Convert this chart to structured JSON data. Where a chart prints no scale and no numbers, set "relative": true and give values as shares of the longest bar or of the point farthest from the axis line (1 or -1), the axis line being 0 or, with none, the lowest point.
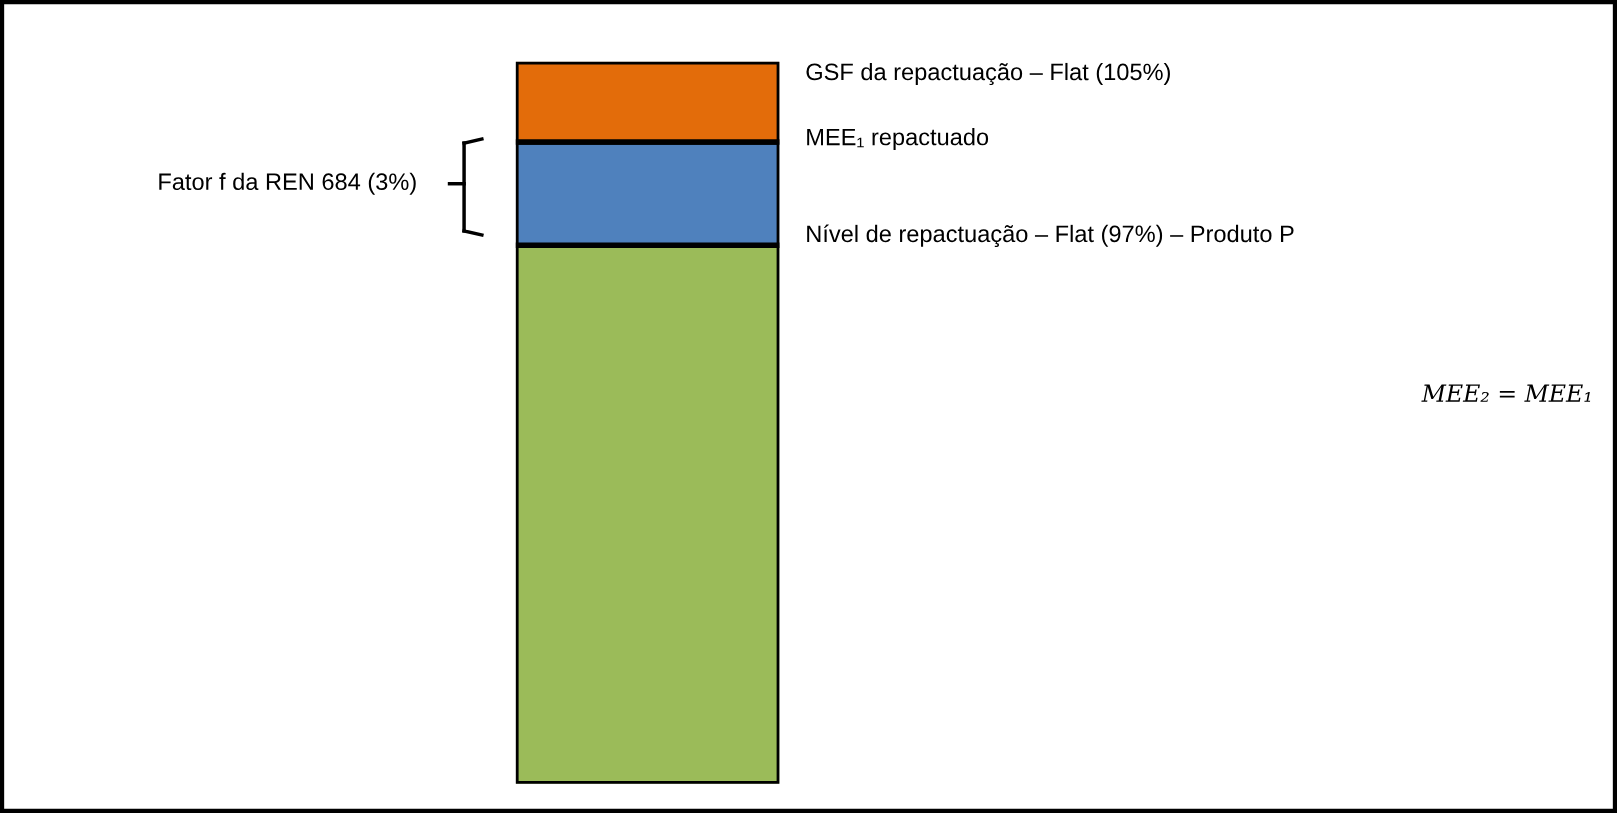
{
  "chart_data": {
    "type": "bar",
    "relative": true,
    "stacked": true,
    "categories": [
      null
    ],
    "series": [
      {
        "color": "#9bbb59",
        "values": [
          0.746
        ]
      },
      {
        "color": "#4f81bd",
        "values": [
          0.143
        ]
      },
      {
        "color": "#e36c0a",
        "values": [
          0.111
        ]
      }
    ],
    "annotations": [
      "GSF da repactuação – Flat (105%)",
      "MEE₁ repactuado",
      "Nível de repactuação – Flat (97%) – Produto P",
      "Fator f da REN 684 (3%)",
      "MEE₂ = MEE₁"
    ]
  }
}
